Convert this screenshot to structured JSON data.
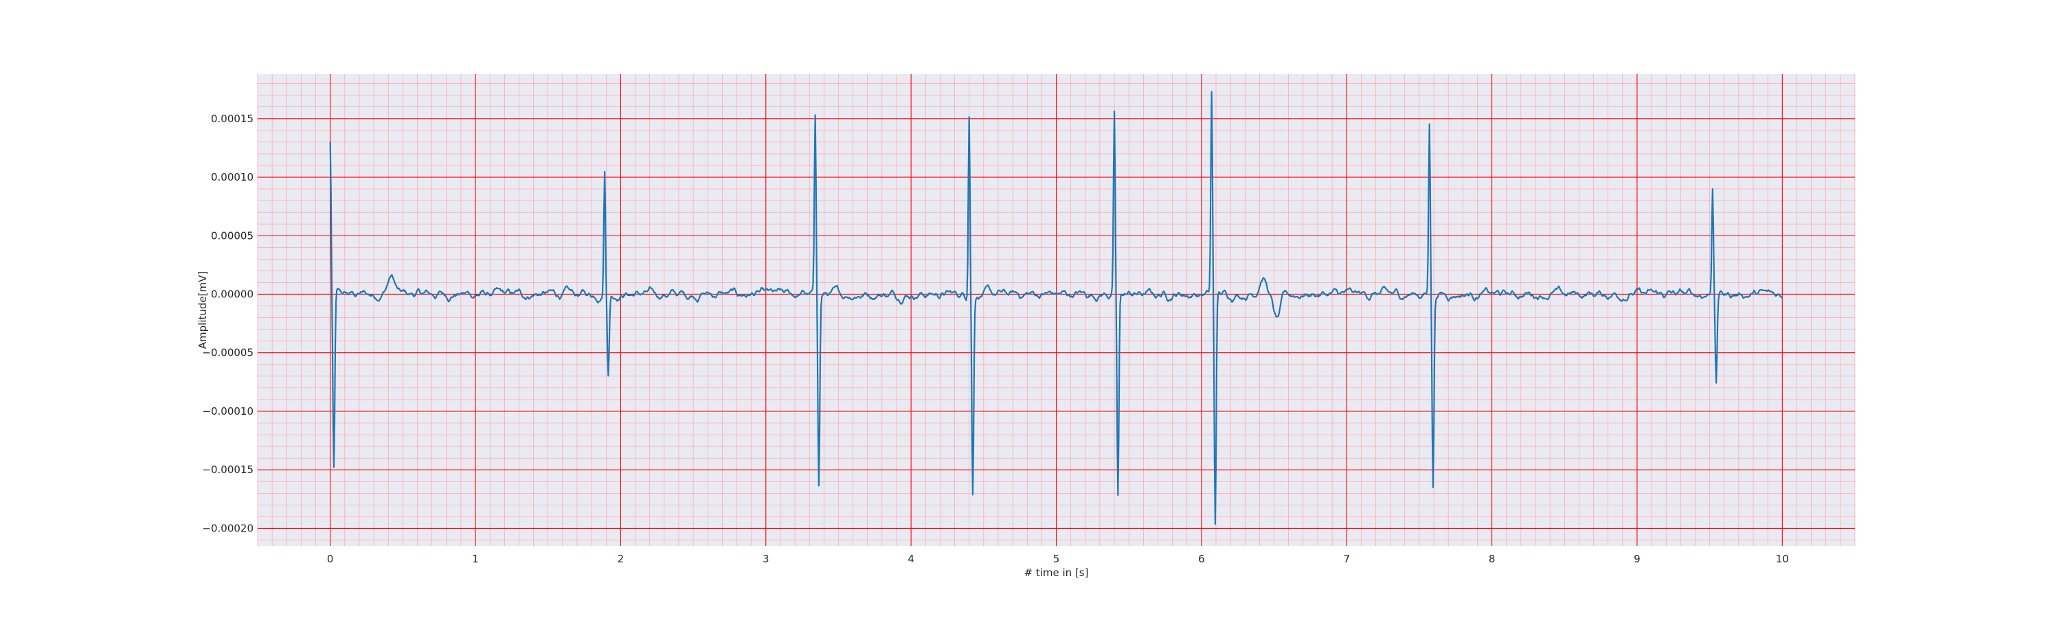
{
  "chart_data": {
    "type": "line",
    "title": "",
    "xlabel": "# time in [s]",
    "ylabel": "Amplitude[mV]",
    "xlim": [
      -0.5,
      10.5
    ],
    "ylim": [
      -0.000215,
      0.000188
    ],
    "x_ticks": [
      0,
      1,
      2,
      3,
      4,
      5,
      6,
      7,
      8,
      9,
      10
    ],
    "x_tick_labels": [
      "0",
      "1",
      "2",
      "3",
      "4",
      "5",
      "6",
      "7",
      "8",
      "9",
      "10"
    ],
    "y_ticks": [
      0.00015,
      0.0001,
      5e-05,
      0.0,
      -5e-05,
      -0.0001,
      -0.00015,
      -0.0002
    ],
    "y_tick_labels": [
      "0.00015",
      "0.00010",
      "0.00005",
      "0.00000",
      "−0.00005",
      "−0.00010",
      "−0.00015",
      "−0.00020"
    ],
    "grid": true,
    "minor_grid": true,
    "colors": {
      "background": "#eaeaf2",
      "major_grid": "#ff0000",
      "minor_grid": "#ff9a9a",
      "line": "#1f77b4"
    },
    "series": [
      {
        "x_start": 0,
        "x_end": 10,
        "beats": [
          {
            "t": 0.0,
            "r": 0.00013,
            "s": -0.000151
          },
          {
            "t": 1.89,
            "r": 0.000107,
            "s": -6.8e-05
          },
          {
            "t": 3.34,
            "r": 0.000149,
            "s": -0.000161
          },
          {
            "t": 4.4,
            "r": 0.000156,
            "s": -0.000168
          },
          {
            "t": 5.4,
            "r": 0.000153,
            "s": -0.000175
          },
          {
            "t": 6.07,
            "r": 0.000171,
            "s": -0.000196
          },
          {
            "t": 7.57,
            "r": 0.000147,
            "s": -0.000162
          },
          {
            "t": 9.52,
            "r": 9.4e-05,
            "s": -7.6e-05
          }
        ],
        "baseline_noise_amplitude": 8e-06,
        "waves": [
          {
            "t": 0.42,
            "a": 1.5e-05
          },
          {
            "t": 6.42,
            "a": 1.5e-05
          },
          {
            "t": 6.52,
            "a": -2.2e-05
          }
        ]
      }
    ]
  }
}
